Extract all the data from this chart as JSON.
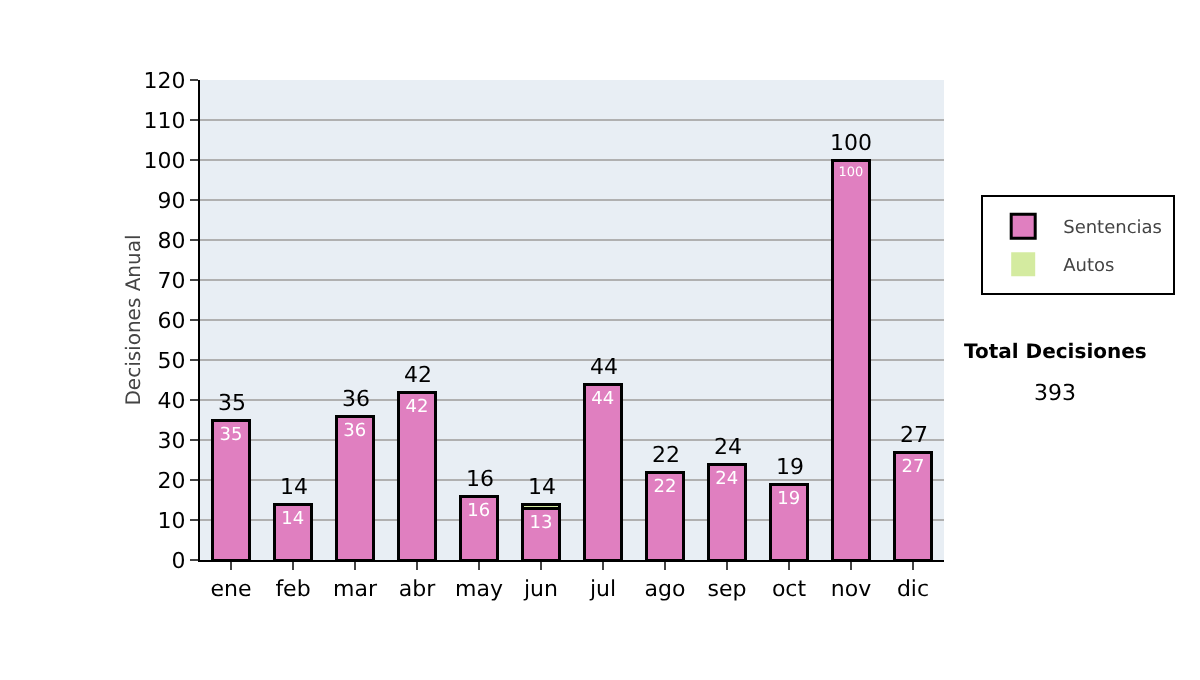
{
  "chart_data": {
    "type": "bar",
    "stacked": true,
    "ylabel": "Decisiones Anual",
    "categories": [
      "ene",
      "feb",
      "mar",
      "abr",
      "may",
      "jun",
      "jul",
      "ago",
      "sep",
      "oct",
      "nov",
      "dic"
    ],
    "series": [
      {
        "name": "Sentencias",
        "color": "#e07fc0",
        "values": [
          35,
          14,
          36,
          42,
          16,
          13,
          44,
          22,
          24,
          19,
          100,
          27
        ],
        "value_labels": [
          "35",
          "14",
          "36",
          "42",
          "16",
          "13",
          "44",
          "22",
          "24",
          "19",
          "100",
          "27"
        ]
      },
      {
        "name": "Autos",
        "color": "#d4eba0",
        "values": [
          0,
          0,
          0,
          0,
          0,
          1,
          0,
          0,
          0,
          0,
          0,
          0
        ]
      }
    ],
    "totals": [
      "35",
      "14",
      "36",
      "42",
      "16",
      "14",
      "44",
      "22",
      "24",
      "19",
      "100",
      "27"
    ],
    "ylim": [
      0,
      120
    ],
    "yticks": [
      0,
      10,
      20,
      30,
      40,
      50,
      60,
      70,
      80,
      90,
      100,
      110,
      120
    ],
    "grid": "y",
    "legend": "right",
    "annotations": [
      "Total Decisiones",
      "393"
    ]
  }
}
